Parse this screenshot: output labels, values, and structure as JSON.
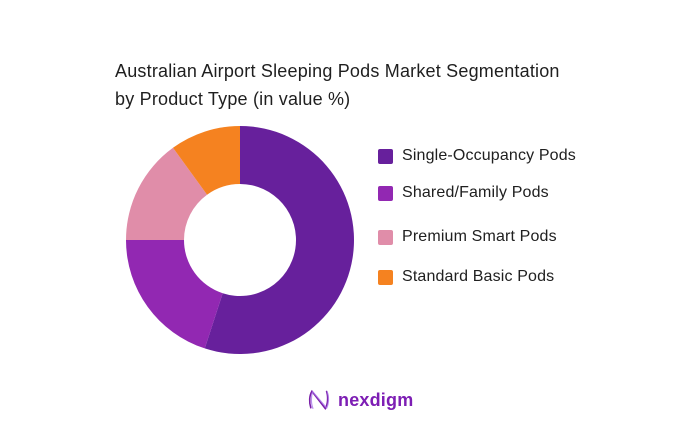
{
  "page": {
    "background_color": "#FFFFFF"
  },
  "title": {
    "line1": "Australian Airport Sleeping Pods Market Segmentation",
    "line2": "by Product Type (in value %)",
    "full_text": "Australian Airport Sleeping Pods Market Segmentation by Product Type (in value %)",
    "color": "#1F1F1F"
  },
  "chart_data": {
    "type": "pie",
    "subtype": "donut",
    "title": "Australian Airport Sleeping Pods Market Segmentation by Product Type (in value %)",
    "value_unit": "percent of market value",
    "start_angle_deg": 0,
    "direction": "clockwise",
    "inner_radius_ratio": 0.49,
    "legend_position": "right",
    "values_labeled_on_chart": false,
    "series": [
      {
        "label": "Single-Occupancy Pods",
        "value": 55,
        "color": "#67209C"
      },
      {
        "label": "Shared/Family Pods",
        "value": 20,
        "color": "#9228B2"
      },
      {
        "label": "Premium Smart Pods",
        "value": 15,
        "color": "#E08DA9"
      },
      {
        "label": "Standard Basic Pods",
        "value": 10,
        "color": "#F58220"
      }
    ]
  },
  "branding": {
    "logo_text": "nexdigm",
    "logo_text_color": "#7D1EB4",
    "logo_icon": "wavy-n-icon",
    "logo_icon_colors": [
      "#7A1FA8",
      "#A974E8"
    ]
  }
}
